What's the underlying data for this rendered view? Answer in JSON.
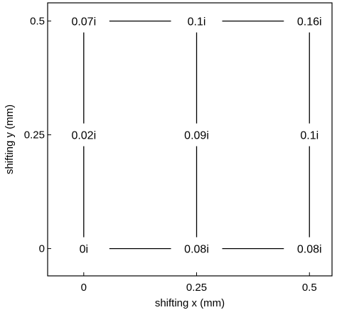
{
  "chart_data": {
    "type": "scatter",
    "xlabel": "shifting x (mm)",
    "ylabel": "shifting y (mm)",
    "xlim": [
      -0.08,
      0.55
    ],
    "ylim": [
      -0.06,
      0.54
    ],
    "xticks": [
      0,
      0.25,
      0.5
    ],
    "yticks": [
      0,
      0.25,
      0.5
    ],
    "xtick_labels": [
      "0",
      "0.25",
      "0.5"
    ],
    "ytick_labels": [
      "0",
      "0.25",
      "0.5"
    ],
    "grid": false,
    "points": [
      {
        "x": 0,
        "y": 0.5,
        "label": "0.07i"
      },
      {
        "x": 0.25,
        "y": 0.5,
        "label": "0.1i"
      },
      {
        "x": 0.5,
        "y": 0.5,
        "label": "0.16i"
      },
      {
        "x": 0,
        "y": 0.25,
        "label": "0.02i"
      },
      {
        "x": 0.25,
        "y": 0.25,
        "label": "0.09i"
      },
      {
        "x": 0.5,
        "y": 0.25,
        "label": "0.1i"
      },
      {
        "x": 0,
        "y": 0,
        "label": "0i"
      },
      {
        "x": 0.25,
        "y": 0,
        "label": "0.08i"
      },
      {
        "x": 0.5,
        "y": 0,
        "label": "0.08i"
      }
    ]
  }
}
